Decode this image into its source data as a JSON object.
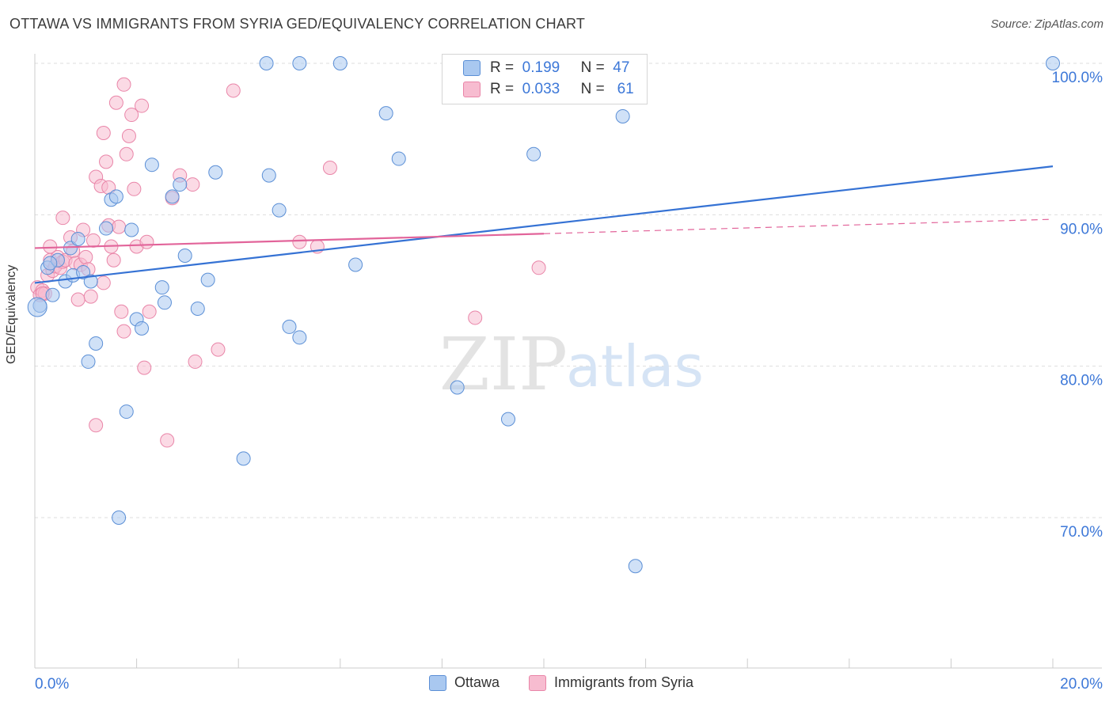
{
  "title": "OTTAWA VS IMMIGRANTS FROM SYRIA GED/EQUIVALENCY CORRELATION CHART",
  "source": "Source: ZipAtlas.com",
  "watermark": {
    "zip": "ZIP",
    "atlas": "atlas"
  },
  "legend": {
    "ottawa": {
      "r_label": "R =",
      "r_value": "0.199",
      "n_label": "N =",
      "n_value": "47"
    },
    "syria": {
      "r_label": "R =",
      "r_value": "0.033",
      "n_label": "N =",
      "n_value": "61"
    }
  },
  "bottom_legend": {
    "ottawa": "Ottawa",
    "syria": "Immigrants from Syria"
  },
  "colors": {
    "ottawa_fill": "#a9c8f0",
    "ottawa_stroke": "#5b8fd6",
    "ottawa_line": "#3572d4",
    "syria_fill": "#f7bcd0",
    "syria_stroke": "#e985a8",
    "syria_line": "#e2649a",
    "tick_text": "#3d78d8",
    "grid": "#dddddd"
  },
  "chart_data": {
    "type": "scatter",
    "title": "OTTAWA VS IMMIGRANTS FROM SYRIA GED/EQUIVALENCY CORRELATION CHART",
    "xlabel": "",
    "ylabel": "GED/Equivalency",
    "xlim": [
      0,
      20
    ],
    "ylim": [
      60,
      101
    ],
    "x_tick_labels": [
      "0.0%",
      "20.0%"
    ],
    "y_ticks": [
      70,
      80,
      90,
      100
    ],
    "y_tick_labels": [
      "70.0%",
      "80.0%",
      "90.0%",
      "100.0%"
    ],
    "series": [
      {
        "name": "Ottawa",
        "trend": {
          "x": [
            0,
            20
          ],
          "y": [
            85.5,
            93.2
          ],
          "dashed_from": null
        },
        "points": [
          [
            0.1,
            84.0
          ],
          [
            0.25,
            86.5
          ],
          [
            0.35,
            84.7
          ],
          [
            0.45,
            87.0
          ],
          [
            0.6,
            85.6
          ],
          [
            0.7,
            87.8
          ],
          [
            0.75,
            86.0
          ],
          [
            0.85,
            88.4
          ],
          [
            0.95,
            86.2
          ],
          [
            1.1,
            85.6
          ],
          [
            1.2,
            81.5
          ],
          [
            1.05,
            80.3
          ],
          [
            1.5,
            91.0
          ],
          [
            1.6,
            91.2
          ],
          [
            1.4,
            89.1
          ],
          [
            1.9,
            89.0
          ],
          [
            2.0,
            83.1
          ],
          [
            2.1,
            82.5
          ],
          [
            2.3,
            93.3
          ],
          [
            2.5,
            85.2
          ],
          [
            2.55,
            84.2
          ],
          [
            2.7,
            91.2
          ],
          [
            2.85,
            92.0
          ],
          [
            2.95,
            87.3
          ],
          [
            3.2,
            83.8
          ],
          [
            3.4,
            85.7
          ],
          [
            3.55,
            92.8
          ],
          [
            4.1,
            73.9
          ],
          [
            4.6,
            92.6
          ],
          [
            4.8,
            90.3
          ],
          [
            5.0,
            82.6
          ],
          [
            5.2,
            81.9
          ],
          [
            4.55,
            100.0
          ],
          [
            5.2,
            100.0
          ],
          [
            6.0,
            100.0
          ],
          [
            6.3,
            86.7
          ],
          [
            6.9,
            96.7
          ],
          [
            7.15,
            93.7
          ],
          [
            8.3,
            78.6
          ],
          [
            9.3,
            76.5
          ],
          [
            9.8,
            94.0
          ],
          [
            11.55,
            96.5
          ],
          [
            11.8,
            66.8
          ],
          [
            20.0,
            100.0
          ],
          [
            1.65,
            70.0
          ],
          [
            1.8,
            77.0
          ],
          [
            0.3,
            86.8
          ]
        ]
      },
      {
        "name": "Immigrants from Syria",
        "trend": {
          "x": [
            0,
            20
          ],
          "y": [
            87.8,
            89.7
          ],
          "dashed_from": 10
        },
        "points": [
          [
            0.05,
            85.2
          ],
          [
            0.1,
            84.7
          ],
          [
            0.15,
            85.0
          ],
          [
            0.2,
            84.8
          ],
          [
            0.25,
            86.0
          ],
          [
            0.3,
            87.0
          ],
          [
            0.35,
            86.3
          ],
          [
            0.4,
            86.6
          ],
          [
            0.45,
            87.2
          ],
          [
            0.5,
            86.5
          ],
          [
            0.55,
            86.9
          ],
          [
            0.6,
            87.0
          ],
          [
            0.3,
            87.9
          ],
          [
            0.55,
            89.8
          ],
          [
            0.7,
            88.5
          ],
          [
            0.75,
            87.6
          ],
          [
            0.8,
            86.8
          ],
          [
            0.85,
            84.4
          ],
          [
            0.9,
            86.7
          ],
          [
            0.95,
            89.0
          ],
          [
            1.0,
            87.2
          ],
          [
            1.05,
            86.4
          ],
          [
            1.1,
            84.6
          ],
          [
            1.15,
            88.3
          ],
          [
            1.2,
            92.5
          ],
          [
            1.3,
            91.9
          ],
          [
            1.35,
            85.5
          ],
          [
            1.35,
            95.4
          ],
          [
            1.4,
            93.5
          ],
          [
            1.45,
            89.3
          ],
          [
            1.45,
            91.8
          ],
          [
            1.5,
            87.9
          ],
          [
            1.55,
            87.0
          ],
          [
            1.6,
            97.4
          ],
          [
            1.65,
            89.2
          ],
          [
            1.7,
            83.6
          ],
          [
            1.75,
            82.3
          ],
          [
            1.75,
            98.6
          ],
          [
            1.8,
            94.0
          ],
          [
            1.85,
            95.2
          ],
          [
            1.9,
            96.6
          ],
          [
            1.95,
            91.7
          ],
          [
            2.0,
            87.9
          ],
          [
            2.1,
            97.2
          ],
          [
            2.15,
            79.9
          ],
          [
            2.2,
            88.2
          ],
          [
            2.25,
            83.6
          ],
          [
            2.6,
            75.1
          ],
          [
            2.7,
            91.1
          ],
          [
            2.85,
            92.6
          ],
          [
            3.1,
            92.0
          ],
          [
            3.15,
            80.3
          ],
          [
            3.6,
            81.1
          ],
          [
            3.9,
            98.2
          ],
          [
            5.2,
            88.2
          ],
          [
            5.55,
            87.9
          ],
          [
            5.8,
            93.1
          ],
          [
            8.65,
            83.2
          ],
          [
            9.9,
            86.5
          ],
          [
            1.2,
            76.1
          ],
          [
            0.15,
            84.8
          ]
        ]
      }
    ]
  }
}
